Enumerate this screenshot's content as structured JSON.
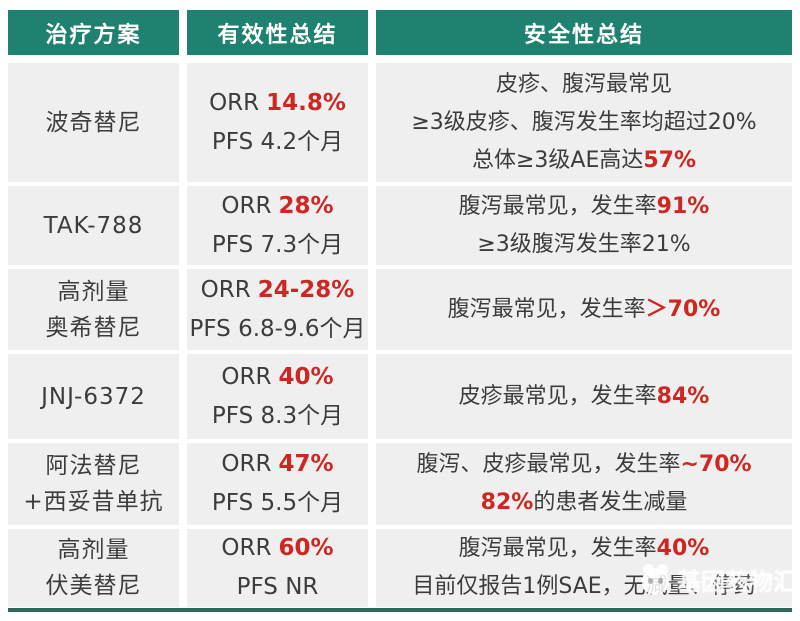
{
  "chart_data": {
    "type": "table",
    "columns": [
      "治疗方案",
      "有效性总结",
      "安全性总结"
    ],
    "rows": [
      {
        "regimen": [
          "波奇替尼"
        ],
        "orr_label": "ORR",
        "orr_value": "14.8%",
        "pfs": "PFS 4.2个月",
        "safety": [
          [
            "皮疹、腹泻最常见"
          ],
          [
            "≥3级皮疹、腹泻发生率均超过20%"
          ],
          [
            "总体≥3级AE高达",
            "57%"
          ]
        ]
      },
      {
        "regimen": [
          "TAK-788"
        ],
        "orr_label": "ORR",
        "orr_value": "28%",
        "pfs": "PFS 7.3个月",
        "safety": [
          [
            "腹泻最常见，发生率",
            "91%"
          ],
          [
            "≥3级腹泻发生率21%"
          ]
        ]
      },
      {
        "regimen": [
          "高剂量",
          "奥希替尼"
        ],
        "orr_label": "ORR",
        "orr_value": "24-28%",
        "pfs": "PFS 6.8-9.6个月",
        "safety": [
          [
            "腹泻最常见，发生率",
            "＞70%"
          ]
        ]
      },
      {
        "regimen": [
          "JNJ-6372"
        ],
        "orr_label": "ORR",
        "orr_value": "40%",
        "pfs": "PFS 8.3个月",
        "safety": [
          [
            "皮疹最常见，发生率",
            "84%"
          ]
        ]
      },
      {
        "regimen": [
          "阿法替尼",
          "+西妥昔单抗"
        ],
        "orr_label": "ORR",
        "orr_value": "47%",
        "pfs": "PFS 5.5个月",
        "safety": [
          [
            "腹泻、皮疹最常见，发生率",
            "~70%"
          ],
          [
            "82%",
            "的患者发生减量"
          ]
        ]
      },
      {
        "regimen": [
          "高剂量",
          "伏美替尼"
        ],
        "orr_label": "ORR",
        "orr_value": "60%",
        "pfs": "PFS NR",
        "safety": [
          [
            "腹泻最常见，发生率",
            "40%"
          ],
          [
            "目前仅报告1例SAE，无减量、停药"
          ]
        ]
      }
    ]
  },
  "watermark": {
    "text": "基因药物汇"
  },
  "colors": {
    "header_bg": "#1F8270",
    "cell_bg": "#EFEFEF",
    "text": "#3C3C3C",
    "highlight_red": "#CE2620",
    "bottom_rule": "#2F6B5C"
  }
}
